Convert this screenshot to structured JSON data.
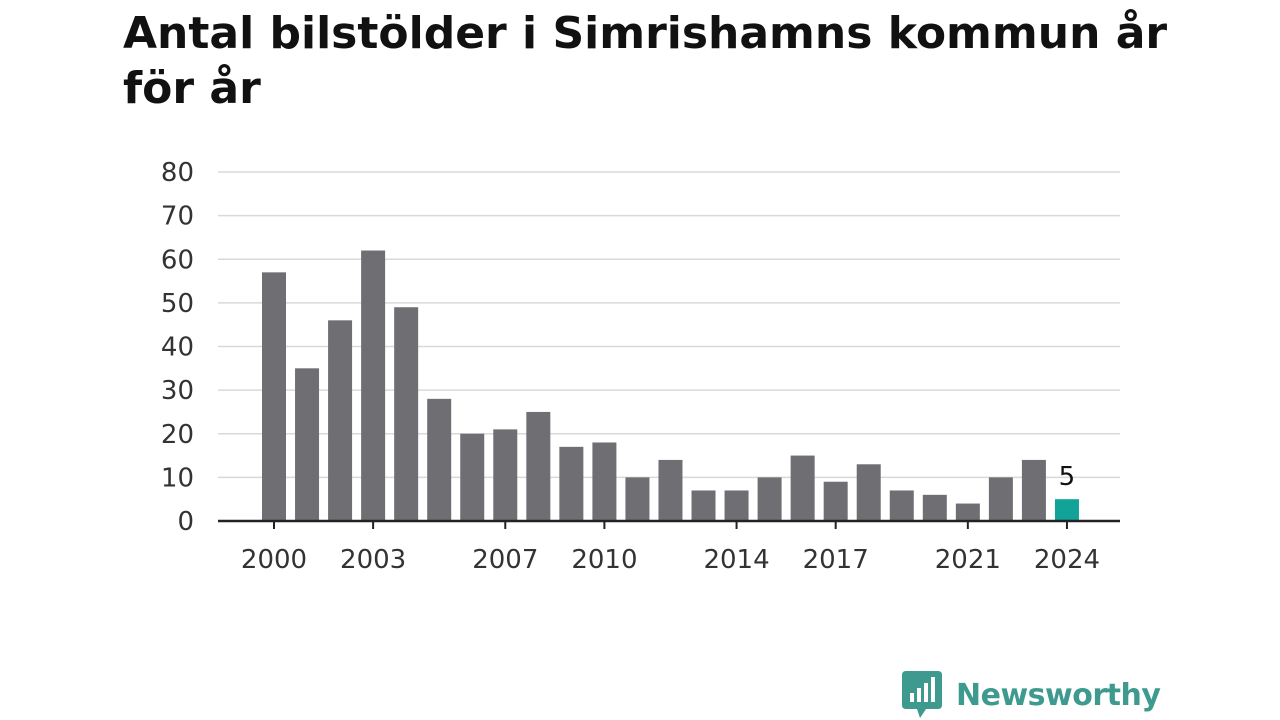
{
  "title": "Antal bilstölder i Simrishamns kommun år för år",
  "brand": {
    "name": "Newsworthy",
    "icon": "chart-bubble-icon",
    "color": "#3e9a8f"
  },
  "colors": {
    "bar": "#6f6e73",
    "highlight": "#11a398",
    "grid": "#d9d9d9",
    "axis": "#222222"
  },
  "chart_data": {
    "type": "bar",
    "title": "Antal bilstölder i Simrishamns kommun år för år",
    "xlabel": "",
    "ylabel": "",
    "ylim": [
      0,
      80
    ],
    "yticks": [
      0,
      10,
      20,
      30,
      40,
      50,
      60,
      70,
      80
    ],
    "grid": true,
    "categories": [
      "2000",
      "2001",
      "2002",
      "2003",
      "2004",
      "2005",
      "2006",
      "2007",
      "2008",
      "2009",
      "2010",
      "2011",
      "2012",
      "2013",
      "2014",
      "2015",
      "2016",
      "2017",
      "2018",
      "2019",
      "2020",
      "2021",
      "2022",
      "2023",
      "2024"
    ],
    "xtick_labels": [
      "2000",
      "2003",
      "2007",
      "2010",
      "2014",
      "2017",
      "2021",
      "2024"
    ],
    "values": [
      57,
      35,
      46,
      62,
      49,
      28,
      20,
      21,
      25,
      17,
      18,
      10,
      14,
      7,
      7,
      10,
      15,
      9,
      13,
      7,
      6,
      4,
      10,
      14,
      5
    ],
    "highlight": {
      "category": "2024",
      "value": 5,
      "label": "5"
    }
  }
}
